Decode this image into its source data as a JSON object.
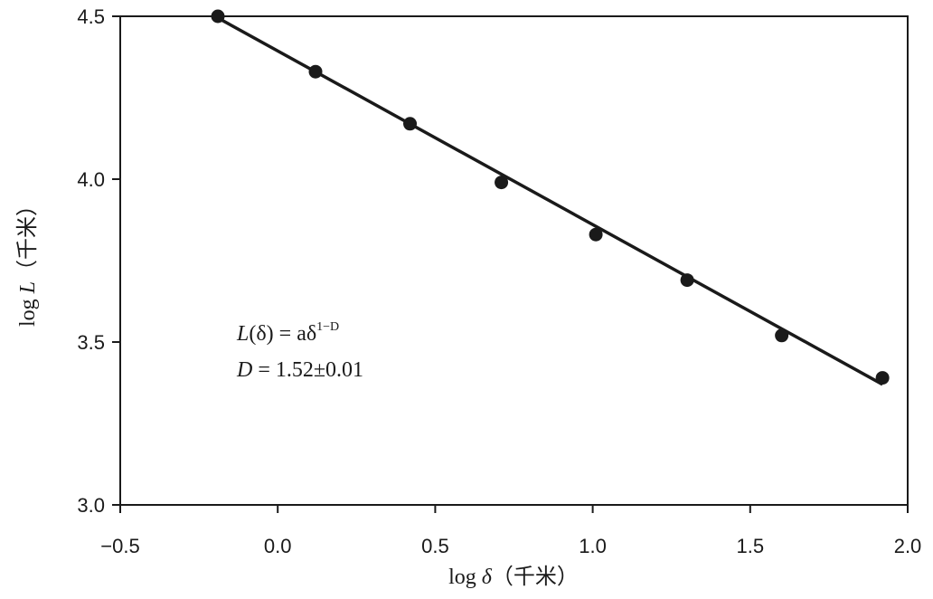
{
  "chart_data": {
    "type": "scatter",
    "xlabel_prefix": "log",
    "xlabel_symbol": "δ",
    "xlabel_unit": "（千米）",
    "ylabel_prefix": "log",
    "ylabel_symbol": "L",
    "ylabel_unit": "（千米）",
    "xlim": [
      -0.5,
      2.0
    ],
    "ylim": [
      3.0,
      4.5
    ],
    "x_ticks": [
      -0.5,
      0.0,
      0.5,
      1.0,
      1.5,
      2.0
    ],
    "x_tick_labels": [
      "−0.5",
      "0.0",
      "0.5",
      "1.0",
      "1.5",
      "2.0"
    ],
    "y_ticks": [
      3.0,
      3.5,
      4.0,
      4.5
    ],
    "y_tick_labels": [
      "3.0",
      "3.5",
      "4.0",
      "4.5"
    ],
    "grid": false,
    "series": [
      {
        "x": [
          -0.19,
          0.12,
          0.42,
          0.71,
          1.01,
          1.3,
          1.6,
          1.92
        ],
        "y": [
          4.5,
          4.33,
          4.17,
          3.99,
          3.83,
          3.69,
          3.52,
          3.39
        ]
      }
    ],
    "fit_line": {
      "x": [
        -0.19,
        1.92
      ],
      "y": [
        4.495,
        3.37
      ]
    },
    "annotations": {
      "formula_L": "L",
      "formula_mid": "(δ) = aδ",
      "formula_sup": "1−D",
      "formula_D": "D",
      "formula_D_value": " = 1.52±0.01"
    },
    "colors": {
      "axis": "#1a1a1a",
      "points": "#1a1a1a",
      "line": "#1a1a1a"
    }
  }
}
